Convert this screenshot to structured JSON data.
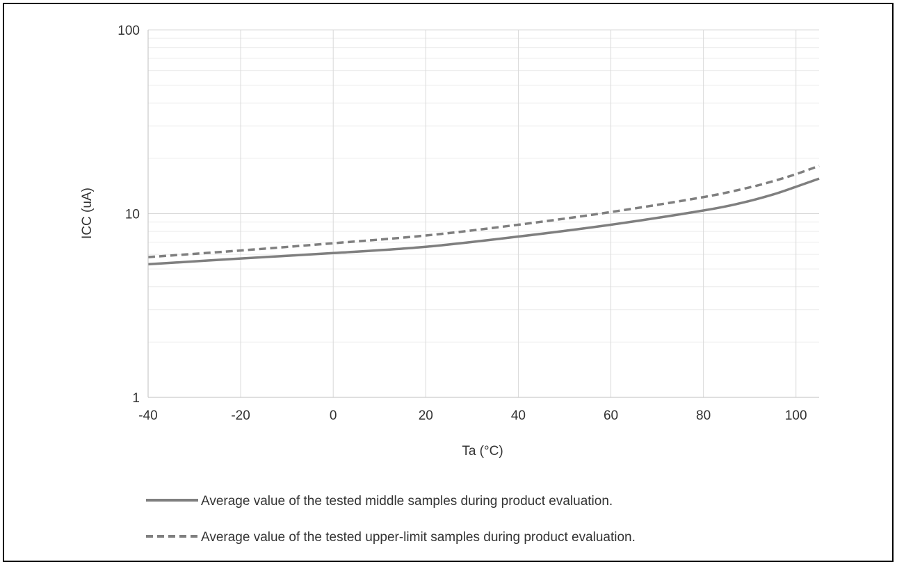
{
  "chart_data": {
    "type": "line",
    "xlabel": "Ta (°C)",
    "ylabel": "ICC (uA)",
    "xlim": [
      -40,
      105
    ],
    "ylim": [
      1,
      100
    ],
    "y_scale": "log",
    "x_ticks": [
      -40,
      -20,
      0,
      20,
      40,
      60,
      80,
      100
    ],
    "x_tick_labels": [
      "-40",
      "-20",
      "0",
      "20",
      "40",
      "60",
      "80",
      "100"
    ],
    "y_ticks": [
      1,
      10,
      100
    ],
    "y_tick_labels": [
      "1",
      "10",
      "100"
    ],
    "grid": true,
    "legend_position": "bottom",
    "series_color": "#7f7f7f",
    "series": [
      {
        "name": "Average value of the tested middle samples during product evaluation.",
        "style": "solid",
        "x": [
          -40,
          -20,
          0,
          20,
          40,
          60,
          80,
          88,
          95,
          100,
          105
        ],
        "y": [
          5.3,
          5.7,
          6.1,
          6.6,
          7.5,
          8.7,
          10.4,
          11.4,
          12.7,
          14.0,
          15.5
        ]
      },
      {
        "name": "Average value of the tested upper-limit samples during product evaluation.",
        "style": "dashed",
        "x": [
          -40,
          -20,
          0,
          20,
          40,
          60,
          80,
          90,
          95,
          100,
          105
        ],
        "y": [
          5.8,
          6.3,
          6.9,
          7.6,
          8.7,
          10.2,
          12.3,
          13.9,
          15.0,
          16.4,
          18.2
        ]
      }
    ]
  }
}
